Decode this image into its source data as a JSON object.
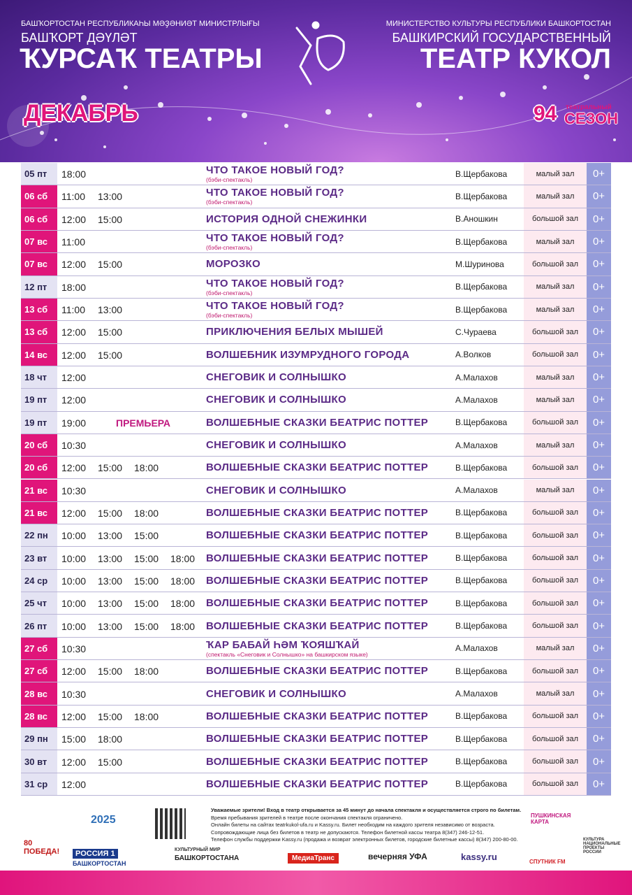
{
  "header": {
    "left_ministry": "БАШҠОРТОСТАН РЕСПУБЛИКАҺЫ МӘҘӘНИӘТ МИНИСТРЛЫҒЫ",
    "left_line1": "БАШҠОРТ ДӘҮЛӘТ",
    "left_line2": "ҠУРСАҠ ТЕАТРЫ",
    "right_ministry": "МИНИСТЕРСТВО КУЛЬТУРЫ РЕСПУБЛИКИ БАШКОРТОСТАН",
    "right_line1": "БАШКИРСКИЙ ГОСУДАРСТВЕННЫЙ",
    "right_line2": "ТЕАТР КУКОЛ",
    "month": "ДЕКАБРЬ",
    "season_number": "94",
    "season_label1": "театральный",
    "season_label2": "СЕЗОН"
  },
  "table": {
    "rows": [
      {
        "date": "05 пт",
        "highlight": false,
        "times": [
          "18:00"
        ],
        "title": "ЧТО ТАКОЕ НОВЫЙ ГОД?",
        "subtitle": "(бэби-спектакль)",
        "director": "В.Щербакова",
        "hall": "малый зал",
        "age": "0+"
      },
      {
        "date": "06 сб",
        "highlight": true,
        "times": [
          "11:00",
          "13:00"
        ],
        "title": "ЧТО ТАКОЕ НОВЫЙ ГОД?",
        "subtitle": "(бэби-спектакль)",
        "director": "В.Щербакова",
        "hall": "малый зал",
        "age": "0+"
      },
      {
        "date": "06 сб",
        "highlight": true,
        "times": [
          "12:00",
          "15:00"
        ],
        "title": "ИСТОРИЯ ОДНОЙ СНЕЖИНКИ",
        "director": "В.Аношкин",
        "hall": "большой зал",
        "age": "0+"
      },
      {
        "date": "07 вс",
        "highlight": true,
        "times": [
          "11:00"
        ],
        "title": "ЧТО ТАКОЕ НОВЫЙ ГОД?",
        "subtitle": "(бэби-спектакль)",
        "director": "В.Щербакова",
        "hall": "малый зал",
        "age": "0+"
      },
      {
        "date": "07 вс",
        "highlight": true,
        "times": [
          "12:00",
          "15:00"
        ],
        "title": "МОРОЗКО",
        "director": "М.Шуринова",
        "hall": "большой зал",
        "age": "0+"
      },
      {
        "date": "12 пт",
        "highlight": false,
        "times": [
          "18:00"
        ],
        "title": "ЧТО ТАКОЕ НОВЫЙ ГОД?",
        "subtitle": "(бэби-спектакль)",
        "director": "В.Щербакова",
        "hall": "малый зал",
        "age": "0+"
      },
      {
        "date": "13 сб",
        "highlight": true,
        "times": [
          "11:00",
          "13:00"
        ],
        "title": "ЧТО ТАКОЕ НОВЫЙ ГОД?",
        "subtitle": "(бэби-спектакль)",
        "director": "В.Щербакова",
        "hall": "малый зал",
        "age": "0+"
      },
      {
        "date": "13 сб",
        "highlight": true,
        "times": [
          "12:00",
          "15:00"
        ],
        "title": "ПРИКЛЮЧЕНИЯ БЕЛЫХ МЫШЕЙ",
        "director": "С.Чураева",
        "hall": "большой зал",
        "age": "0+"
      },
      {
        "date": "14 вс",
        "highlight": true,
        "times": [
          "12:00",
          "15:00"
        ],
        "title": "ВОЛШЕБНИК ИЗУМРУДНОГО ГОРОДА",
        "director": "А.Волков",
        "hall": "большой зал",
        "age": "0+"
      },
      {
        "date": "18 чт",
        "highlight": false,
        "times": [
          "12:00"
        ],
        "title": "СНЕГОВИК И СОЛНЫШКО",
        "director": "А.Малахов",
        "hall": "малый зал",
        "age": "0+"
      },
      {
        "date": "19 пт",
        "highlight": false,
        "times": [
          "12:00"
        ],
        "title": "СНЕГОВИК И СОЛНЫШКО",
        "director": "А.Малахов",
        "hall": "малый зал",
        "age": "0+"
      },
      {
        "date": "19 пт",
        "highlight": false,
        "times": [
          "19:00"
        ],
        "note": "ПРЕМЬЕРА",
        "title": "ВОЛШЕБНЫЕ СКАЗКИ БЕАТРИС ПОТТЕР",
        "director": "В.Щербакова",
        "hall": "большой зал",
        "age": "0+"
      },
      {
        "date": "20 сб",
        "highlight": true,
        "times": [
          "10:30"
        ],
        "title": "СНЕГОВИК И СОЛНЫШКО",
        "director": "А.Малахов",
        "hall": "малый зал",
        "age": "0+"
      },
      {
        "date": "20 сб",
        "highlight": true,
        "times": [
          "12:00",
          "15:00",
          "18:00"
        ],
        "title": "ВОЛШЕБНЫЕ СКАЗКИ БЕАТРИС ПОТТЕР",
        "director": "В.Щербакова",
        "hall": "большой зал",
        "age": "0+"
      },
      {
        "date": "21 вс",
        "highlight": true,
        "times": [
          "10:30"
        ],
        "title": "СНЕГОВИК И СОЛНЫШКО",
        "director": "А.Малахов",
        "hall": "малый зал",
        "age": "0+"
      },
      {
        "date": "21 вс",
        "highlight": true,
        "times": [
          "12:00",
          "15:00",
          "18:00"
        ],
        "title": "ВОЛШЕБНЫЕ СКАЗКИ БЕАТРИС ПОТТЕР",
        "director": "В.Щербакова",
        "hall": "большой зал",
        "age": "0+"
      },
      {
        "date": "22 пн",
        "highlight": false,
        "times": [
          "10:00",
          "13:00",
          "15:00"
        ],
        "title": "ВОЛШЕБНЫЕ СКАЗКИ БЕАТРИС ПОТТЕР",
        "director": "В.Щербакова",
        "hall": "большой зал",
        "age": "0+"
      },
      {
        "date": "23 вт",
        "highlight": false,
        "times": [
          "10:00",
          "13:00",
          "15:00",
          "18:00"
        ],
        "title": "ВОЛШЕБНЫЕ СКАЗКИ БЕАТРИС ПОТТЕР",
        "director": "В.Щербакова",
        "hall": "большой зал",
        "age": "0+"
      },
      {
        "date": "24 ср",
        "highlight": false,
        "times": [
          "10:00",
          "13:00",
          "15:00",
          "18:00"
        ],
        "title": "ВОЛШЕБНЫЕ СКАЗКИ БЕАТРИС ПОТТЕР",
        "director": "В.Щербакова",
        "hall": "большой зал",
        "age": "0+"
      },
      {
        "date": "25 чт",
        "highlight": false,
        "times": [
          "10:00",
          "13:00",
          "15:00",
          "18:00"
        ],
        "title": "ВОЛШЕБНЫЕ СКАЗКИ БЕАТРИС ПОТТЕР",
        "director": "В.Щербакова",
        "hall": "большой зал",
        "age": "0+"
      },
      {
        "date": "26 пт",
        "highlight": false,
        "times": [
          "10:00",
          "13:00",
          "15:00",
          "18:00"
        ],
        "title": "ВОЛШЕБНЫЕ СКАЗКИ БЕАТРИС ПОТТЕР",
        "director": "В.Щербакова",
        "hall": "большой зал",
        "age": "0+"
      },
      {
        "date": "27 сб",
        "highlight": true,
        "times": [
          "10:30"
        ],
        "title": "ҠАР БАБАЙ ҺӘМ ҠОЯШҠАЙ",
        "subtitle": "(спектакль «Снеговик и Солнышко» на башкирском языке)",
        "director": "А.Малахов",
        "hall": "малый зал",
        "age": "0+"
      },
      {
        "date": "27 сб",
        "highlight": true,
        "times": [
          "12:00",
          "15:00",
          "18:00"
        ],
        "title": "ВОЛШЕБНЫЕ СКАЗКИ БЕАТРИС ПОТТЕР",
        "director": "В.Щербакова",
        "hall": "большой зал",
        "age": "0+"
      },
      {
        "date": "28 вс",
        "highlight": true,
        "times": [
          "10:30"
        ],
        "title": "СНЕГОВИК И СОЛНЫШКО",
        "director": "А.Малахов",
        "hall": "малый зал",
        "age": "0+"
      },
      {
        "date": "28 вс",
        "highlight": true,
        "times": [
          "12:00",
          "15:00",
          "18:00"
        ],
        "title": "ВОЛШЕБНЫЕ СКАЗКИ БЕАТРИС ПОТТЕР",
        "director": "В.Щербакова",
        "hall": "большой зал",
        "age": "0+"
      },
      {
        "date": "29 пн",
        "highlight": false,
        "times": [
          "15:00",
          "18:00"
        ],
        "title": "ВОЛШЕБНЫЕ СКАЗКИ БЕАТРИС ПОТТЕР",
        "director": "В.Щербакова",
        "hall": "большой зал",
        "age": "0+"
      },
      {
        "date": "30 вт",
        "highlight": false,
        "times": [
          "12:00",
          "15:00"
        ],
        "title": "ВОЛШЕБНЫЕ СКАЗКИ БЕАТРИС ПОТТЕР",
        "director": "В.Щербакова",
        "hall": "большой зал",
        "age": "0+"
      },
      {
        "date": "31 ср",
        "highlight": false,
        "times": [
          "12:00"
        ],
        "title": "ВОЛШЕБНЫЕ СКАЗКИ БЕАТРИС ПОТТЕР",
        "director": "В.Щербакова",
        "hall": "большой зал",
        "age": "0+"
      }
    ]
  },
  "footer": {
    "notice": [
      "Уважаемые зрители! Вход в театр открывается за 45 минут до начала спектакля и осуществляется строго по билетам.",
      "Время пребывания зрителей в театре после окончания спектакля ограничено.",
      "Онлайн билеты на сайтах teatrkukol-ufa.ru и Kassy.ru. Билет необходим на каждого зрителя независимо от возраста.",
      "Сопровождающие лица без билетов в театр не допускаются. Телефон билетной кассы театра 8(347) 246-12-51.",
      "Телефон службы поддержки Kassy.ru (продажа и возврат электронных билетов, городские билетные кассы) 8(347) 200-80-00."
    ],
    "logos": {
      "victory": "80 ПОБЕДА!",
      "year": "2025",
      "tv": "РОССИЯ 1",
      "tv_region": "БАШКОРТОСТАН",
      "culture_top": "КУЛЬТУРНЫЙ МИР",
      "culture_bottom": "БАШКОРТОСТАНА",
      "media": "МедиаТранс",
      "newspaper": "вечерняя УФА",
      "kassy": "kassy.ru",
      "radio": "СПУТНИК FM",
      "pushkin": "ПУШКИНСКАЯ КАРТА",
      "project": "КУЛЬТУРА НАЦИОНАЛЬНЫЕ ПРОЕКТЫ РОССИИ"
    }
  }
}
